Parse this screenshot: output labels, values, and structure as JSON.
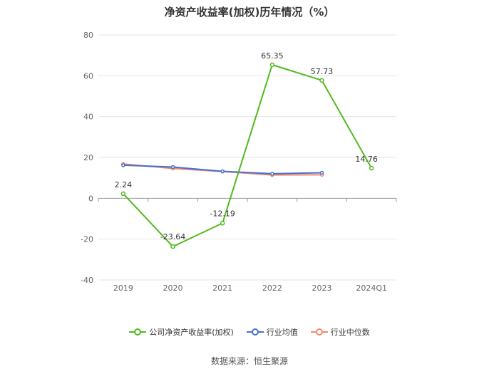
{
  "chart_data": {
    "type": "line",
    "title": "净资产收益率(加权)历年情况（%）",
    "categories": [
      "2019",
      "2020",
      "2021",
      "2022",
      "2023",
      "2024Q1"
    ],
    "yticks": [
      "80",
      "60",
      "40",
      "20",
      "0",
      "-20",
      "-40"
    ],
    "ylim": [
      -40,
      80
    ],
    "grid": true,
    "legend_position": "bottom",
    "series": [
      {
        "name": "公司净资产收益率(加权)",
        "color": "#52b91e",
        "values": [
          2.24,
          -23.64,
          -12.19,
          65.35,
          57.73,
          14.76
        ],
        "labels": [
          "2.24",
          "-23.64",
          "-12.19",
          "65.35",
          "57.73",
          "14.76"
        ]
      },
      {
        "name": "行业均值",
        "color": "#4a6fd1",
        "values": [
          16.2,
          15.3,
          13.2,
          12.0,
          12.5,
          null
        ]
      },
      {
        "name": "行业中位数",
        "color": "#f08a6a",
        "values": [
          16.8,
          14.6,
          13.1,
          11.4,
          11.5,
          null
        ]
      }
    ]
  },
  "source": "数据来源：恒生聚源"
}
